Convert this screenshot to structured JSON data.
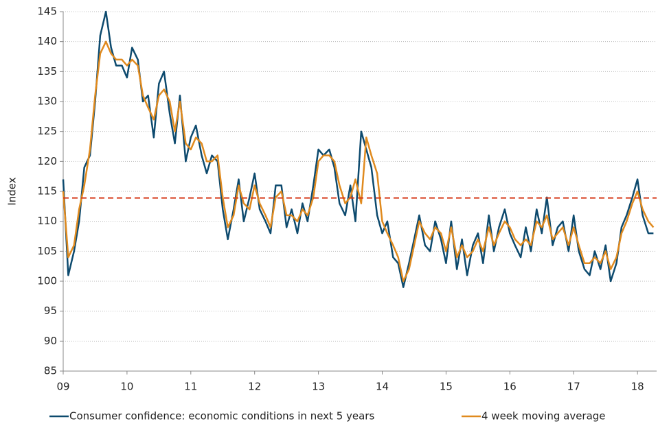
{
  "chart_data": {
    "type": "line",
    "y_label": "Index",
    "x": [
      2009,
      2009.08,
      2009.17,
      2009.25,
      2009.33,
      2009.42,
      2009.5,
      2009.58,
      2009.67,
      2009.75,
      2009.83,
      2009.92,
      2010,
      2010.08,
      2010.17,
      2010.25,
      2010.33,
      2010.42,
      2010.5,
      2010.58,
      2010.67,
      2010.75,
      2010.83,
      2010.92,
      2011,
      2011.08,
      2011.17,
      2011.25,
      2011.33,
      2011.42,
      2011.5,
      2011.58,
      2011.67,
      2011.75,
      2011.83,
      2011.92,
      2012,
      2012.08,
      2012.17,
      2012.25,
      2012.33,
      2012.42,
      2012.5,
      2012.58,
      2012.67,
      2012.75,
      2012.83,
      2012.92,
      2013,
      2013.08,
      2013.17,
      2013.25,
      2013.33,
      2013.42,
      2013.5,
      2013.58,
      2013.67,
      2013.75,
      2013.83,
      2013.92,
      2014,
      2014.08,
      2014.17,
      2014.25,
      2014.33,
      2014.42,
      2014.5,
      2014.58,
      2014.67,
      2014.75,
      2014.83,
      2014.92,
      2015,
      2015.08,
      2015.17,
      2015.25,
      2015.33,
      2015.42,
      2015.5,
      2015.58,
      2015.67,
      2015.75,
      2015.83,
      2015.92,
      2016,
      2016.08,
      2016.17,
      2016.25,
      2016.33,
      2016.42,
      2016.5,
      2016.58,
      2016.67,
      2016.75,
      2016.83,
      2016.92,
      2017,
      2017.08,
      2017.17,
      2017.25,
      2017.33,
      2017.42,
      2017.5,
      2017.58,
      2017.67,
      2017.75,
      2017.83,
      2017.92,
      2018,
      2018.08,
      2018.17,
      2018.25
    ],
    "series": [
      {
        "name": "Consumer confidence: economic conditions in next 5 years",
        "color": "#0d4a6e",
        "values": [
          117,
          101,
          105,
          110,
          119,
          121,
          130,
          141,
          145,
          139,
          136,
          136,
          134,
          139,
          137,
          130,
          131,
          124,
          133,
          135,
          128,
          123,
          131,
          120,
          124,
          126,
          121,
          118,
          121,
          120,
          112,
          107,
          112,
          117,
          110,
          114,
          118,
          112,
          110,
          108,
          116,
          116,
          109,
          112,
          108,
          113,
          110,
          116,
          122,
          121,
          122,
          119,
          113,
          111,
          116,
          110,
          125,
          122,
          119,
          111,
          108,
          110,
          104,
          103,
          99,
          103,
          107,
          111,
          106,
          105,
          110,
          107,
          103,
          110,
          102,
          107,
          101,
          106,
          108,
          103,
          111,
          105,
          109,
          112,
          108,
          106,
          104,
          109,
          105,
          112,
          108,
          114,
          106,
          109,
          110,
          105,
          111,
          105,
          102,
          101,
          105,
          102,
          106,
          100,
          103,
          109,
          111,
          114,
          117,
          111,
          108,
          108
        ]
      },
      {
        "name": "4 week moving average",
        "color": "#e08a1e",
        "values": [
          115,
          104,
          106,
          112,
          116,
          122,
          131,
          138,
          140,
          138,
          137,
          137,
          136,
          137,
          136,
          131,
          129,
          127,
          131,
          132,
          130,
          125,
          130,
          123,
          122,
          124,
          123,
          120,
          120,
          121,
          114,
          109,
          111,
          116,
          113,
          112,
          116,
          113,
          111,
          109,
          114,
          115,
          111,
          111,
          110,
          112,
          111,
          114,
          120,
          121,
          121,
          120,
          116,
          113,
          114,
          117,
          113,
          124,
          121,
          118,
          110,
          108,
          106,
          104,
          100,
          102,
          106,
          110,
          108,
          107,
          109,
          108,
          105,
          109,
          104,
          106,
          104,
          105,
          107,
          105,
          109,
          106,
          108,
          110,
          109,
          107,
          106,
          107,
          106,
          110,
          109,
          111,
          107,
          108,
          109,
          106,
          109,
          106,
          103,
          103,
          104,
          103,
          105,
          102,
          104,
          108,
          110,
          113,
          115,
          112,
          110,
          109
        ]
      }
    ],
    "reference_line": {
      "value": 113.9,
      "color": "#d63a1a"
    },
    "xlim": [
      2009,
      2018.3
    ],
    "xticks": [
      {
        "value": 2009,
        "label": "09"
      },
      {
        "value": 2010,
        "label": "10"
      },
      {
        "value": 2011,
        "label": "11"
      },
      {
        "value": 2012,
        "label": "12"
      },
      {
        "value": 2013,
        "label": "13"
      },
      {
        "value": 2014,
        "label": "14"
      },
      {
        "value": 2015,
        "label": "15"
      },
      {
        "value": 2016,
        "label": "16"
      },
      {
        "value": 2017,
        "label": "17"
      },
      {
        "value": 2018,
        "label": "18"
      }
    ],
    "ylim": [
      85,
      145
    ],
    "yticks": [
      85,
      90,
      95,
      100,
      105,
      110,
      115,
      120,
      125,
      130,
      135,
      140,
      145
    ],
    "grid": true
  }
}
